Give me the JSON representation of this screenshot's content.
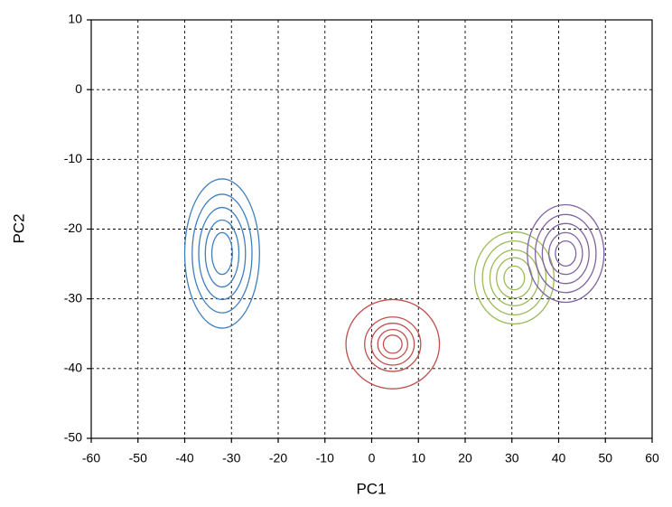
{
  "chart_data": {
    "type": "contour",
    "x_label": "PC1",
    "y_label": "PC2",
    "xlim": [
      -60,
      60
    ],
    "xticks": [
      -60,
      -50,
      -40,
      -30,
      -20,
      -10,
      0,
      10,
      20,
      30,
      40,
      50,
      60
    ],
    "ylim": [
      -50,
      10
    ],
    "yticks": [
      -50,
      -40,
      -30,
      -20,
      -10,
      0,
      10
    ],
    "grid": true,
    "series": [
      {
        "color": "#3f7fbf",
        "center_x": -32,
        "center_y": -23.5,
        "rx": [
          8,
          6.4,
          5,
          3.6,
          2.2
        ],
        "ry": [
          10.7,
          8.5,
          6.6,
          4.8,
          3
        ]
      },
      {
        "color": "#c0504d",
        "center_x": 4.5,
        "center_y": -36.5,
        "rx": [
          10,
          6,
          4.6,
          3.2,
          2
        ],
        "ry": [
          6.4,
          3.9,
          3,
          2.1,
          1.3
        ]
      },
      {
        "color": "#9bbb59",
        "center_x": 30.5,
        "center_y": -27,
        "rx": [
          8.5,
          6.8,
          5.2,
          3.8,
          2.2
        ],
        "ry": [
          6.6,
          5.3,
          4,
          2.9,
          1.7
        ]
      },
      {
        "color": "#8064a2",
        "center_x": 41.5,
        "center_y": -23.5,
        "rx": [
          8.2,
          6.5,
          5,
          3.6,
          2.2
        ],
        "ry": [
          7,
          5.6,
          4.3,
          3,
          1.8
        ]
      }
    ]
  }
}
